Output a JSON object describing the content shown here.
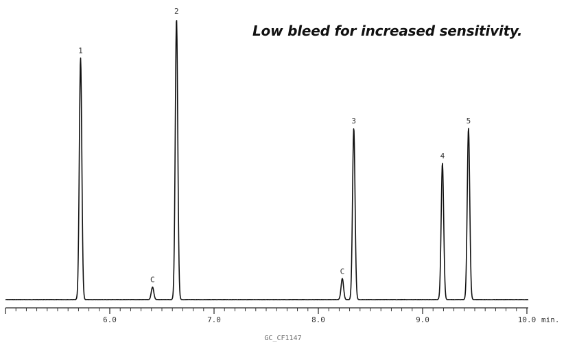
{
  "headline": "Low bleed for increased sensitivity.",
  "figure_code": "GC_CF1147",
  "chart_data": {
    "type": "line",
    "title": "Low bleed for increased sensitivity.",
    "xlabel": "min.",
    "ylabel": "",
    "xlim": [
      5.0,
      10.0
    ],
    "ylim": [
      0,
      100
    ],
    "grid": false,
    "x_ticks": [
      6.0,
      7.0,
      8.0,
      9.0,
      10.0
    ],
    "x_tick_labels": [
      "6.0",
      "7.0",
      "8.0",
      "9.0",
      "10.0"
    ],
    "minor_tick_step": 0.1,
    "peaks": [
      {
        "label": "1",
        "x": 5.72,
        "height": 86
      },
      {
        "label": "C",
        "x": 6.41,
        "height": 4.5
      },
      {
        "label": "2",
        "x": 6.64,
        "height": 100
      },
      {
        "label": "C",
        "x": 8.23,
        "height": 7.5
      },
      {
        "label": "3",
        "x": 8.34,
        "height": 61
      },
      {
        "label": "4",
        "x": 9.19,
        "height": 48.5
      },
      {
        "label": "5",
        "x": 9.44,
        "height": 61
      }
    ],
    "line_color": "#111111"
  }
}
